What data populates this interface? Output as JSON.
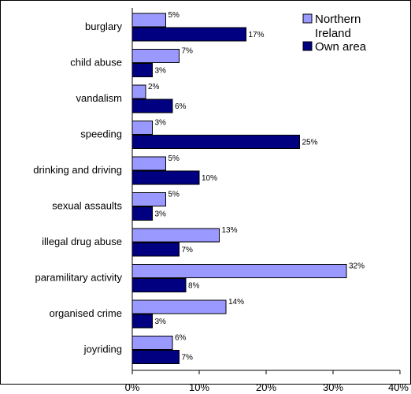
{
  "chart_data": {
    "type": "bar",
    "orientation": "horizontal",
    "categories": [
      "burglary",
      "child abuse",
      "vandalism",
      "speeding",
      "drinking and driving",
      "sexual assaults",
      "illegal drug abuse",
      "paramilitary activity",
      "organised  crime",
      "joyriding"
    ],
    "series": [
      {
        "name": "Northern Ireland",
        "color": "#9999ff",
        "values": [
          5,
          7,
          2,
          3,
          5,
          5,
          13,
          32,
          14,
          6
        ],
        "labels": [
          "5%",
          "7%",
          "2%",
          "3%",
          "5%",
          "5%",
          "13%",
          "32%",
          "14%",
          "6%"
        ]
      },
      {
        "name": "Own area",
        "color": "#000080",
        "values": [
          17,
          3,
          6,
          25,
          10,
          3,
          7,
          8,
          3,
          7
        ],
        "labels": [
          "17%",
          "3%",
          "6%",
          "25%",
          "10%",
          "3%",
          "7%",
          "8%",
          "3%",
          "7%"
        ]
      }
    ],
    "xlim": [
      0,
      40
    ],
    "xticks": [
      "0%",
      "10%",
      "20%",
      "30%",
      "40%"
    ],
    "legend": {
      "placement": "top-right",
      "lines": [
        [
          "Northern",
          "Ireland"
        ],
        [
          "Own area"
        ]
      ]
    },
    "grid": false
  }
}
